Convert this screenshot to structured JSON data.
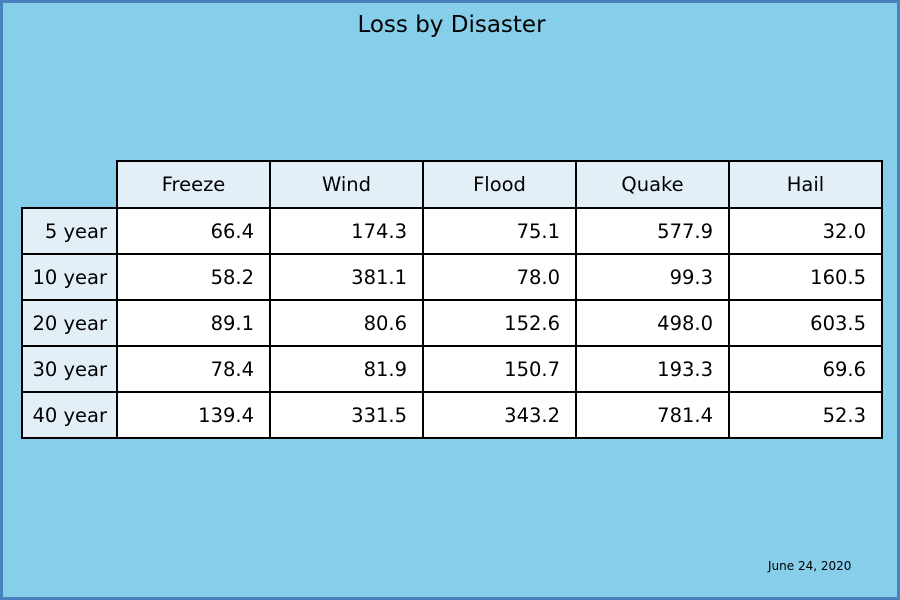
{
  "colors": {
    "background": "#87ceeb",
    "frame": "#4a82c0",
    "header_fill": "#e3eff7",
    "cell_fill": "#ffffff"
  },
  "chart_data": {
    "type": "table",
    "title": "Loss by Disaster",
    "columns": [
      "Freeze",
      "Wind",
      "Flood",
      "Quake",
      "Hail"
    ],
    "rows": [
      {
        "label": "5 year",
        "values": [
          "66.4",
          "174.3",
          "75.1",
          "577.9",
          "32.0"
        ]
      },
      {
        "label": "10 year",
        "values": [
          "58.2",
          "381.1",
          "78.0",
          "99.3",
          "160.5"
        ]
      },
      {
        "label": "20 year",
        "values": [
          "89.1",
          "80.6",
          "152.6",
          "498.0",
          "603.5"
        ]
      },
      {
        "label": "30 year",
        "values": [
          "78.4",
          "81.9",
          "150.7",
          "193.3",
          "69.6"
        ]
      },
      {
        "label": "40 year",
        "values": [
          "139.4",
          "331.5",
          "343.2",
          "781.4",
          "52.3"
        ]
      }
    ],
    "footer_date": "June 24, 2020"
  }
}
